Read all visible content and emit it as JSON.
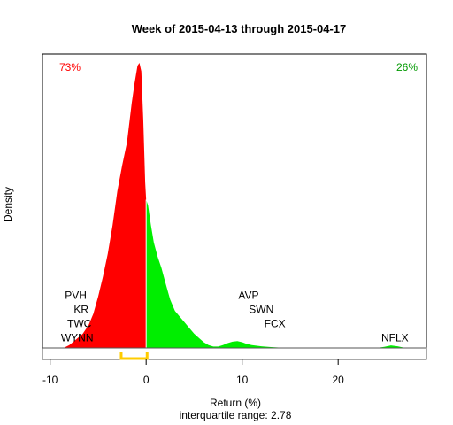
{
  "chart_data": {
    "type": "area",
    "title": "Week of 2015-04-13 through 2015-04-17",
    "xlabel": "Return (%)",
    "ylabel": "Density",
    "subtitle": "interquartile range: 2.78",
    "xlim": [
      -10.8,
      29.2
    ],
    "x_ticks": [
      -10,
      0,
      10,
      20
    ],
    "pct_negative": "73%",
    "pct_positive": "26%",
    "negative_color": "#ff0000",
    "positive_color": "#00ee00",
    "iqr_color": "#ffcc00",
    "iqr_range": [
      -2.6,
      0.1
    ],
    "density": [
      [
        -8.6,
        0.0
      ],
      [
        -8.0,
        0.01
      ],
      [
        -7.3,
        0.03
      ],
      [
        -6.6,
        0.05
      ],
      [
        -6.0,
        0.08
      ],
      [
        -5.5,
        0.12
      ],
      [
        -5.0,
        0.18
      ],
      [
        -4.5,
        0.25
      ],
      [
        -4.0,
        0.33
      ],
      [
        -3.5,
        0.43
      ],
      [
        -3.0,
        0.55
      ],
      [
        -2.5,
        0.64
      ],
      [
        -2.0,
        0.72
      ],
      [
        -1.5,
        0.86
      ],
      [
        -1.2,
        0.93
      ],
      [
        -0.9,
        0.99
      ],
      [
        -0.7,
        1.0
      ],
      [
        -0.5,
        0.97
      ],
      [
        -0.3,
        0.8
      ],
      [
        -0.1,
        0.58
      ],
      [
        0.0,
        0.52
      ],
      [
        0.2,
        0.5
      ],
      [
        0.5,
        0.43
      ],
      [
        0.8,
        0.37
      ],
      [
        1.2,
        0.32
      ],
      [
        1.6,
        0.28
      ],
      [
        2.0,
        0.23
      ],
      [
        2.5,
        0.17
      ],
      [
        3.0,
        0.13
      ],
      [
        3.5,
        0.11
      ],
      [
        4.0,
        0.09
      ],
      [
        4.5,
        0.07
      ],
      [
        5.0,
        0.05
      ],
      [
        5.5,
        0.035
      ],
      [
        6.0,
        0.02
      ],
      [
        6.5,
        0.01
      ],
      [
        7.0,
        0.005
      ],
      [
        7.5,
        0.005
      ],
      [
        8.0,
        0.01
      ],
      [
        8.5,
        0.017
      ],
      [
        9.0,
        0.022
      ],
      [
        9.5,
        0.024
      ],
      [
        10.0,
        0.02
      ],
      [
        10.5,
        0.014
      ],
      [
        11.0,
        0.01
      ],
      [
        12.0,
        0.006
      ],
      [
        13.0,
        0.003
      ],
      [
        14.0,
        0.001
      ],
      [
        15.0,
        0.0
      ],
      [
        24.0,
        0.0
      ],
      [
        24.8,
        0.004
      ],
      [
        25.5,
        0.009
      ],
      [
        26.2,
        0.006
      ],
      [
        27.0,
        0.0
      ]
    ],
    "labels": [
      {
        "text": "PVH",
        "x": -6.2,
        "y": 0.185,
        "anchor": "end"
      },
      {
        "text": "KR",
        "x": -6.0,
        "y": 0.135,
        "anchor": "end"
      },
      {
        "text": "TWC",
        "x": -5.7,
        "y": 0.085,
        "anchor": "end"
      },
      {
        "text": "WYNN",
        "x": -5.5,
        "y": 0.035,
        "anchor": "end"
      },
      {
        "text": "AVP",
        "x": 9.6,
        "y": 0.185,
        "anchor": "start"
      },
      {
        "text": "SWN",
        "x": 10.7,
        "y": 0.135,
        "anchor": "start"
      },
      {
        "text": "FCX",
        "x": 12.3,
        "y": 0.085,
        "anchor": "start"
      },
      {
        "text": "NFLX",
        "x": 24.5,
        "y": 0.035,
        "anchor": "start"
      }
    ]
  }
}
